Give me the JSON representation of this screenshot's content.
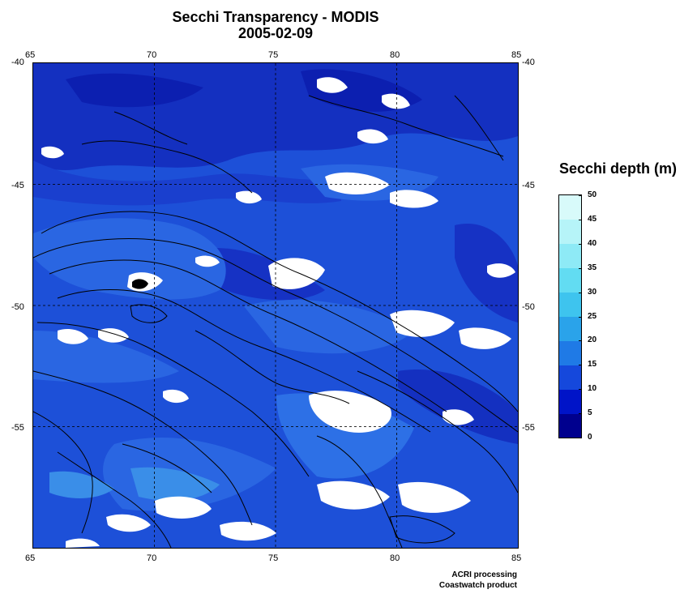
{
  "title": "Secchi Transparency - MODIS",
  "date": "2005-02-09",
  "map": {
    "lon_ticks": [
      "65",
      "70",
      "75",
      "80",
      "85"
    ],
    "lat_ticks": [
      "-40",
      "-45",
      "-50",
      "-55"
    ],
    "lon_range": [
      65,
      85
    ],
    "lat_range": [
      -40,
      -60
    ],
    "grid": "dashed",
    "no_data_color": "#ffffff"
  },
  "legend": {
    "title": "Secchi depth (m)",
    "ticks": [
      "50",
      "45",
      "40",
      "35",
      "30",
      "25",
      "20",
      "15",
      "10",
      "5",
      "0"
    ],
    "colors": [
      "#00008e",
      "#0014c8",
      "#1548dc",
      "#1f7ae6",
      "#2aa3ea",
      "#3ec4ee",
      "#62dcf2",
      "#8eeaf6",
      "#b6f4f8",
      "#d8fafa"
    ]
  },
  "credits": {
    "line1": "ACRI processing",
    "line2": "Coastwatch product"
  }
}
